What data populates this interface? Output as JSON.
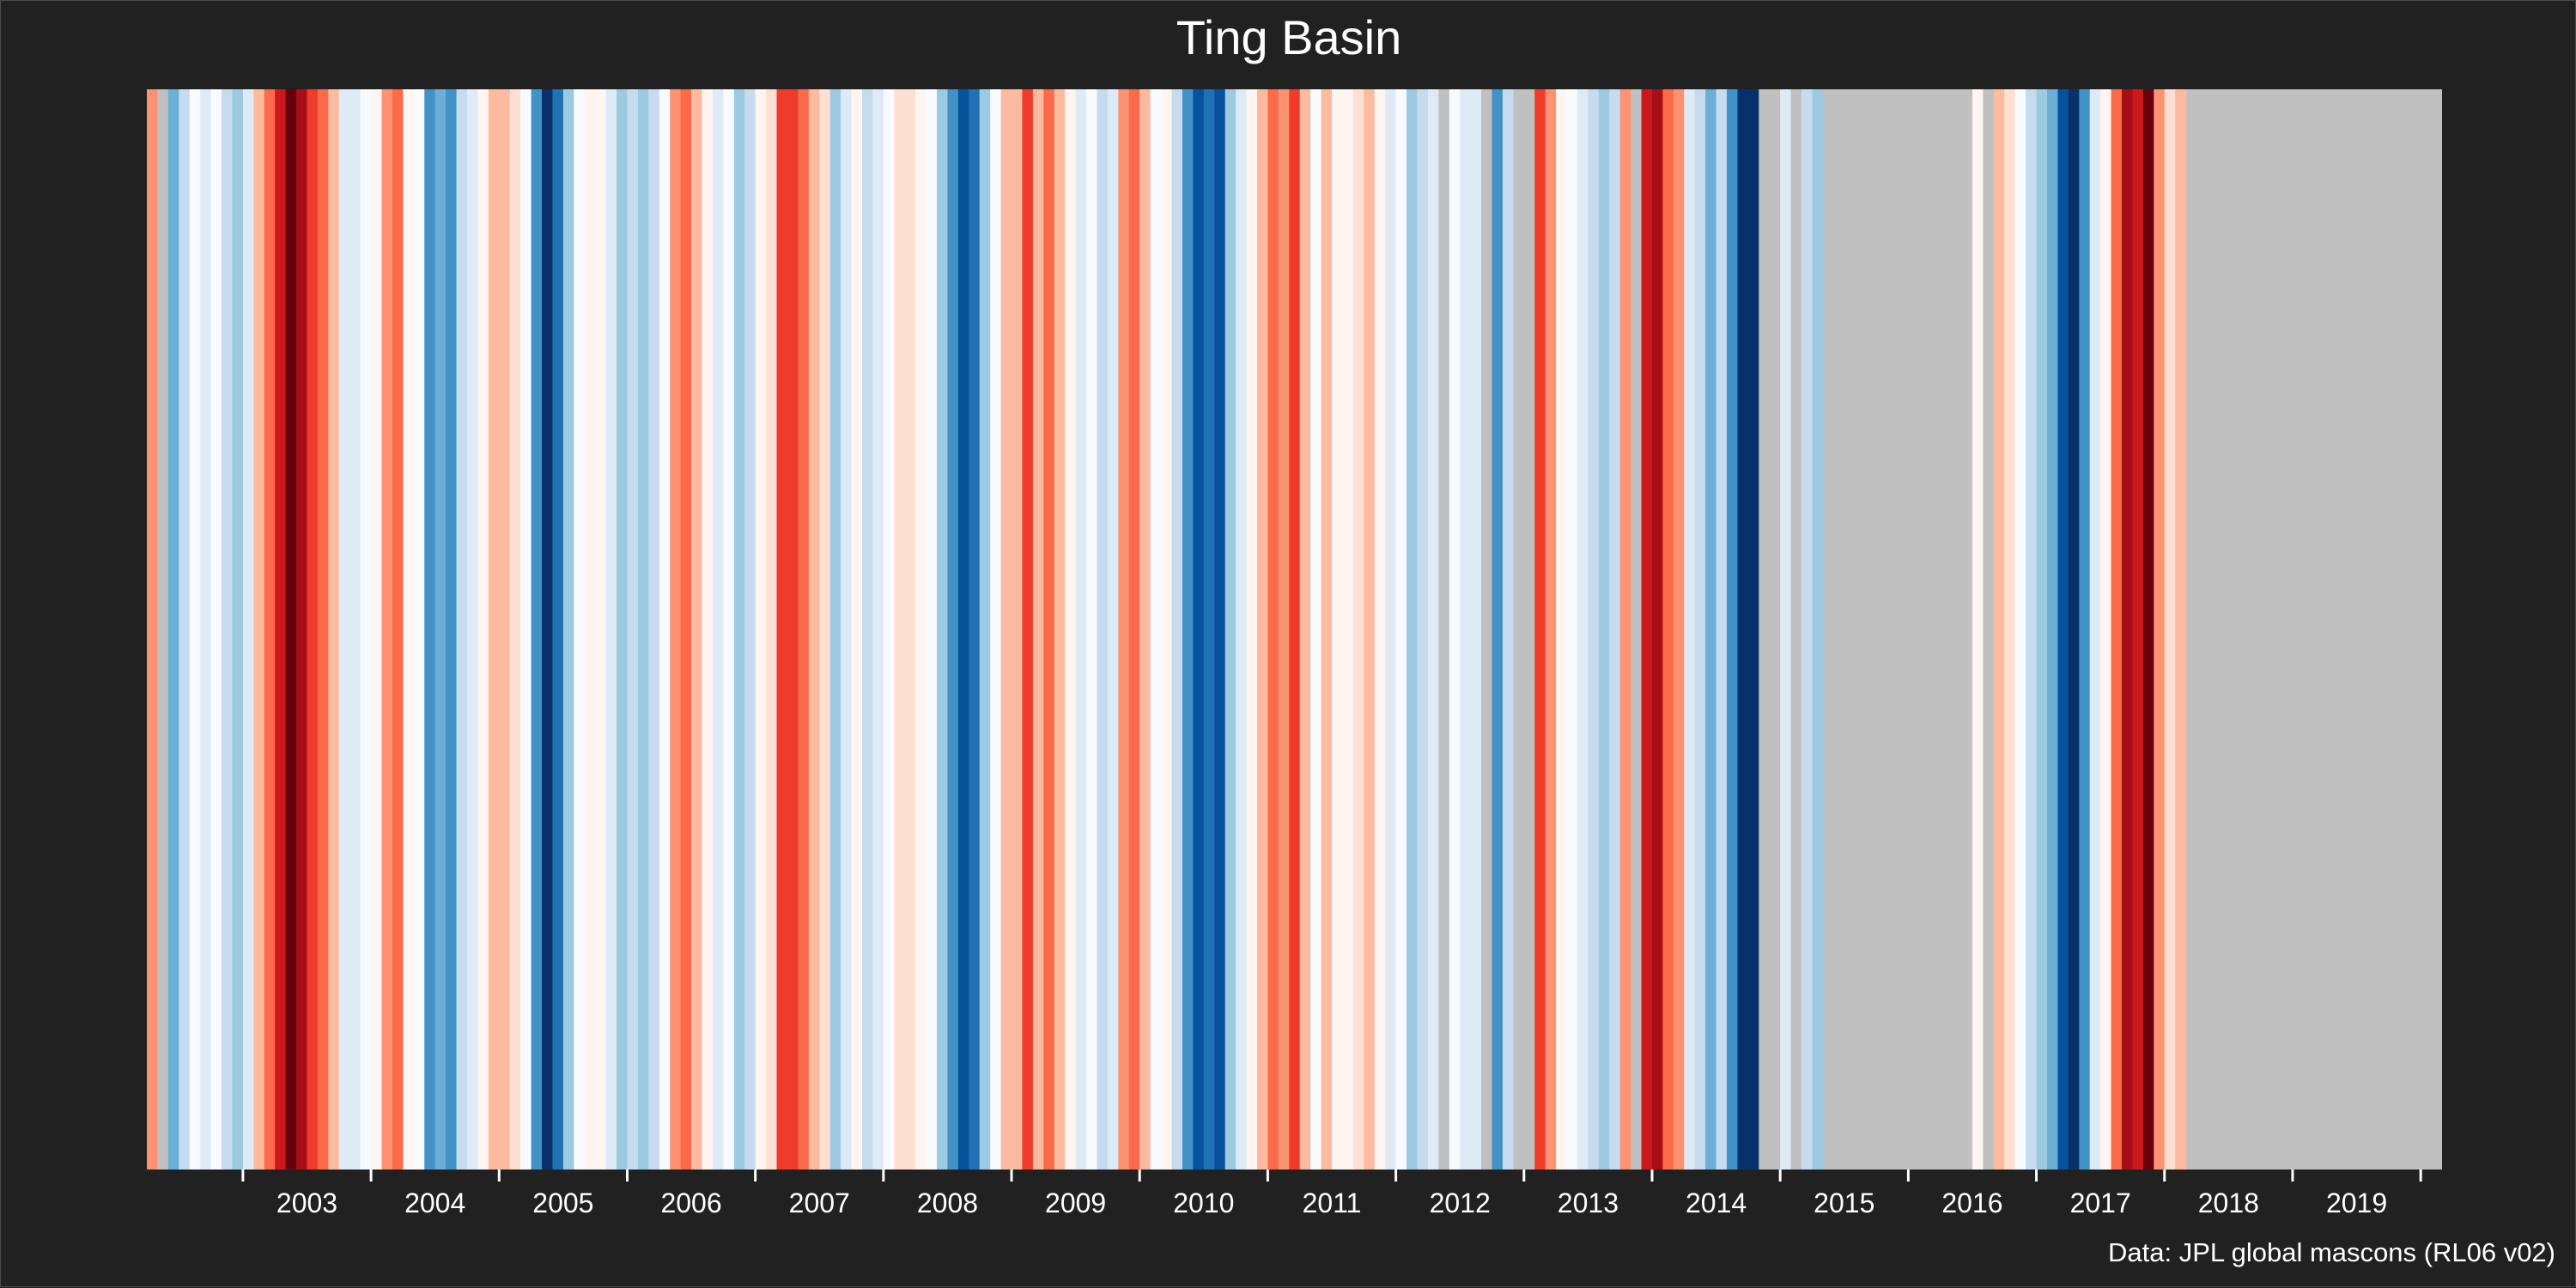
{
  "colors": {
    "background": "#212121",
    "text": "#ffffff",
    "missing": "#c0c0c0",
    "palette": [
      "#08306b",
      "#08519c",
      "#2171b5",
      "#4292c6",
      "#6baed6",
      "#9ecae1",
      "#c6dbef",
      "#deebf7",
      "#f7fbff",
      "#fff5f0",
      "#fee0d2",
      "#fcbba1",
      "#fc9272",
      "#fb6a4a",
      "#ef3b2c",
      "#cb181d",
      "#a50f15",
      "#67000d"
    ]
  },
  "chart_data": {
    "type": "heatmap",
    "title": "Ting Basin",
    "subtitle": "",
    "caption": "Data: JPL global mascons (RL06 v02)",
    "xlabel": "",
    "ylabel": "",
    "x_axis_type": "date",
    "xlim": [
      "2002-04",
      "2020-03"
    ],
    "x_ticks": [
      "2003",
      "2004",
      "2005",
      "2006",
      "2007",
      "2008",
      "2009",
      "2010",
      "2011",
      "2012",
      "2013",
      "2014",
      "2015",
      "2016",
      "2017",
      "2018",
      "2019"
    ],
    "grid": false,
    "legend": "none",
    "value_scale": "diverging anomaly, blue = low to red = high, grey = no data",
    "stripes": [
      {
        "from": "2002-04",
        "to": "2002-05",
        "level": 0.4
      },
      {
        "from": "2002-05",
        "to": "2002-06",
        "level": null
      },
      {
        "from": "2002-06",
        "to": "2002-07",
        "level": -0.55
      },
      {
        "from": "2002-07",
        "to": "2002-08",
        "level": -0.3
      },
      {
        "from": "2002-08",
        "to": "2002-09",
        "level": -0.1
      },
      {
        "from": "2002-09",
        "to": "2002-10",
        "level": -0.2
      },
      {
        "from": "2002-10",
        "to": "2002-11",
        "level": -0.1
      },
      {
        "from": "2002-11",
        "to": "2002-12",
        "level": -0.25
      },
      {
        "from": "2002-12",
        "to": "2003-01",
        "level": -0.4
      },
      {
        "from": "2003-01",
        "to": "2003-02",
        "level": -0.15
      },
      {
        "from": "2003-02",
        "to": "2003-03",
        "level": 0.25
      },
      {
        "from": "2003-03",
        "to": "2003-04",
        "level": 0.55
      },
      {
        "from": "2003-04",
        "to": "2003-05",
        "level": 0.75
      },
      {
        "from": "2003-05",
        "to": "2003-06",
        "level": 0.95
      },
      {
        "from": "2003-06",
        "to": "2003-07",
        "level": 0.85
      },
      {
        "from": "2003-07",
        "to": "2003-08",
        "level": 0.7
      },
      {
        "from": "2003-08",
        "to": "2003-09",
        "level": 0.5
      },
      {
        "from": "2003-09",
        "to": "2003-10",
        "level": 0.25
      },
      {
        "from": "2003-10",
        "to": "2003-11",
        "level": -0.15
      },
      {
        "from": "2003-11",
        "to": "2003-12",
        "level": -0.2
      },
      {
        "from": "2003-12",
        "to": "2004-01",
        "level": -0.1
      },
      {
        "from": "2004-01",
        "to": "2004-02",
        "level": 0.1
      },
      {
        "from": "2004-02",
        "to": "2004-03",
        "level": 0.45
      },
      {
        "from": "2004-03",
        "to": "2004-04",
        "level": 0.5
      },
      {
        "from": "2004-04",
        "to": "2004-05",
        "level": 0.05
      },
      {
        "from": "2004-05",
        "to": "2004-06",
        "level": -0.05
      },
      {
        "from": "2004-06",
        "to": "2004-07",
        "level": -0.6
      },
      {
        "from": "2004-07",
        "to": "2004-08",
        "level": -0.5
      },
      {
        "from": "2004-08",
        "to": "2004-09",
        "level": -0.65
      },
      {
        "from": "2004-09",
        "to": "2004-10",
        "level": -0.3
      },
      {
        "from": "2004-10",
        "to": "2004-11",
        "level": -0.2
      },
      {
        "from": "2004-11",
        "to": "2004-12",
        "level": 0.05
      },
      {
        "from": "2004-12",
        "to": "2005-01",
        "level": 0.25
      },
      {
        "from": "2005-01",
        "to": "2005-02",
        "level": 0.35
      },
      {
        "from": "2005-02",
        "to": "2005-03",
        "level": 0.2
      },
      {
        "from": "2005-03",
        "to": "2005-04",
        "level": -0.1
      },
      {
        "from": "2005-04",
        "to": "2005-05",
        "level": -0.7
      },
      {
        "from": "2005-05",
        "to": "2005-06",
        "level": -1.0
      },
      {
        "from": "2005-06",
        "to": "2005-07",
        "level": -0.75
      },
      {
        "from": "2005-07",
        "to": "2005-08",
        "level": -0.4
      },
      {
        "from": "2005-08",
        "to": "2005-09",
        "level": -0.1
      },
      {
        "from": "2005-09",
        "to": "2005-10",
        "level": 0.05
      },
      {
        "from": "2005-10",
        "to": "2005-11",
        "level": 0.1
      },
      {
        "from": "2005-11",
        "to": "2005-12",
        "level": -0.2
      },
      {
        "from": "2005-12",
        "to": "2006-01",
        "level": -0.4
      },
      {
        "from": "2006-01",
        "to": "2006-02",
        "level": -0.3
      },
      {
        "from": "2006-02",
        "to": "2006-03",
        "level": -0.4
      },
      {
        "from": "2006-03",
        "to": "2006-04",
        "level": -0.35
      },
      {
        "from": "2006-04",
        "to": "2006-05",
        "level": -0.05
      },
      {
        "from": "2006-05",
        "to": "2006-06",
        "level": 0.4
      },
      {
        "from": "2006-06",
        "to": "2006-07",
        "level": 0.5
      },
      {
        "from": "2006-07",
        "to": "2006-08",
        "level": 0.3
      },
      {
        "from": "2006-08",
        "to": "2006-09",
        "level": 0.05
      },
      {
        "from": "2006-09",
        "to": "2006-10",
        "level": -0.2
      },
      {
        "from": "2006-10",
        "to": "2006-11",
        "level": -0.05
      },
      {
        "from": "2006-11",
        "to": "2006-12",
        "level": -0.45
      },
      {
        "from": "2006-12",
        "to": "2007-01",
        "level": -0.25
      },
      {
        "from": "2007-01",
        "to": "2007-02",
        "level": 0.05
      },
      {
        "from": "2007-02",
        "to": "2007-03",
        "level": 0.2
      },
      {
        "from": "2007-03",
        "to": "2007-04",
        "level": 0.65
      },
      {
        "from": "2007-04",
        "to": "2007-05",
        "level": 0.7
      },
      {
        "from": "2007-05",
        "to": "2007-06",
        "level": 0.55
      },
      {
        "from": "2007-06",
        "to": "2007-07",
        "level": 0.35
      },
      {
        "from": "2007-07",
        "to": "2007-08",
        "level": 0.2
      },
      {
        "from": "2007-08",
        "to": "2007-09",
        "level": -0.45
      },
      {
        "from": "2007-09",
        "to": "2007-10",
        "level": -0.2
      },
      {
        "from": "2007-10",
        "to": "2007-11",
        "level": 0.05
      },
      {
        "from": "2007-11",
        "to": "2007-12",
        "level": -0.3
      },
      {
        "from": "2007-12",
        "to": "2008-01",
        "level": -0.15
      },
      {
        "from": "2008-01",
        "to": "2008-02",
        "level": -0.05
      },
      {
        "from": "2008-02",
        "to": "2008-03",
        "level": 0.15
      },
      {
        "from": "2008-03",
        "to": "2008-04",
        "level": 0.15
      },
      {
        "from": "2008-04",
        "to": "2008-05",
        "level": 0.05
      },
      {
        "from": "2008-05",
        "to": "2008-06",
        "level": -0.1
      },
      {
        "from": "2008-06",
        "to": "2008-07",
        "level": -0.4
      },
      {
        "from": "2008-07",
        "to": "2008-08",
        "level": -0.6
      },
      {
        "from": "2008-08",
        "to": "2008-09",
        "level": -0.85
      },
      {
        "from": "2008-09",
        "to": "2008-10",
        "level": -0.8
      },
      {
        "from": "2008-10",
        "to": "2008-11",
        "level": -0.45
      },
      {
        "from": "2008-11",
        "to": "2008-12",
        "level": -0.1
      },
      {
        "from": "2008-12",
        "to": "2009-01",
        "level": 0.3
      },
      {
        "from": "2009-01",
        "to": "2009-02",
        "level": 0.35
      },
      {
        "from": "2009-02",
        "to": "2009-03",
        "level": 0.65
      },
      {
        "from": "2009-03",
        "to": "2009-04",
        "level": 0.35
      },
      {
        "from": "2009-04",
        "to": "2009-05",
        "level": 0.5
      },
      {
        "from": "2009-05",
        "to": "2009-06",
        "level": 0.3
      },
      {
        "from": "2009-06",
        "to": "2009-07",
        "level": 0.05
      },
      {
        "from": "2009-07",
        "to": "2009-08",
        "level": -0.2
      },
      {
        "from": "2009-08",
        "to": "2009-09",
        "level": -0.1
      },
      {
        "from": "2009-09",
        "to": "2009-10",
        "level": -0.25
      },
      {
        "from": "2009-10",
        "to": "2009-11",
        "level": -0.15
      },
      {
        "from": "2009-11",
        "to": "2009-12",
        "level": 0.4
      },
      {
        "from": "2009-12",
        "to": "2010-01",
        "level": 0.5
      },
      {
        "from": "2010-01",
        "to": "2010-02",
        "level": 0.25
      },
      {
        "from": "2010-02",
        "to": "2010-03",
        "level": -0.05
      },
      {
        "from": "2010-03",
        "to": "2010-04",
        "level": 0.05
      },
      {
        "from": "2010-04",
        "to": "2010-05",
        "level": -0.35
      },
      {
        "from": "2010-05",
        "to": "2010-06",
        "level": -0.6
      },
      {
        "from": "2010-06",
        "to": "2010-07",
        "level": -0.85
      },
      {
        "from": "2010-07",
        "to": "2010-08",
        "level": -0.75
      },
      {
        "from": "2010-08",
        "to": "2010-09",
        "level": -0.85
      },
      {
        "from": "2010-09",
        "to": "2010-10",
        "level": -0.45
      },
      {
        "from": "2010-10",
        "to": "2010-11",
        "level": -0.2
      },
      {
        "from": "2010-11",
        "to": "2010-12",
        "level": 0.05
      },
      {
        "from": "2010-12",
        "to": "2011-01",
        "level": 0.25
      },
      {
        "from": "2011-01",
        "to": "2011-02",
        "level": 0.55
      },
      {
        "from": "2011-02",
        "to": "2011-03",
        "level": 0.4
      },
      {
        "from": "2011-03",
        "to": "2011-04",
        "level": 0.65
      },
      {
        "from": "2011-04",
        "to": "2011-05",
        "level": 0.3
      },
      {
        "from": "2011-05",
        "to": "2011-06",
        "level": -0.05
      },
      {
        "from": "2011-06",
        "to": "2011-07",
        "level": 0.25
      },
      {
        "from": "2011-07",
        "to": "2011-08",
        "level": 0.1
      },
      {
        "from": "2011-08",
        "to": "2011-09",
        "level": 0.05
      },
      {
        "from": "2011-09",
        "to": "2011-10",
        "level": 0.2
      },
      {
        "from": "2011-10",
        "to": "2011-11",
        "level": 0.35
      },
      {
        "from": "2011-11",
        "to": "2011-12",
        "level": 0.05
      },
      {
        "from": "2011-12",
        "to": "2012-01",
        "level": -0.2
      },
      {
        "from": "2012-01",
        "to": "2012-02",
        "level": -0.1
      },
      {
        "from": "2012-02",
        "to": "2012-03",
        "level": -0.45
      },
      {
        "from": "2012-03",
        "to": "2012-04",
        "level": -0.35
      },
      {
        "from": "2012-04",
        "to": "2012-05",
        "level": -0.2
      },
      {
        "from": "2012-05",
        "to": "2012-06",
        "level": null
      },
      {
        "from": "2012-06",
        "to": "2012-07",
        "level": -0.05
      },
      {
        "from": "2012-07",
        "to": "2012-08",
        "level": -0.2
      },
      {
        "from": "2012-08",
        "to": "2012-09",
        "level": -0.15
      },
      {
        "from": "2012-09",
        "to": "2012-10",
        "level": null
      },
      {
        "from": "2012-10",
        "to": "2012-11",
        "level": -0.6
      },
      {
        "from": "2012-11",
        "to": "2012-12",
        "level": -0.3
      },
      {
        "from": "2012-12",
        "to": "2013-01",
        "level": null
      },
      {
        "from": "2013-01",
        "to": "2013-02",
        "level": null
      },
      {
        "from": "2013-02",
        "to": "2013-03",
        "level": 0.6
      },
      {
        "from": "2013-03",
        "to": "2013-04",
        "level": 0.4
      },
      {
        "from": "2013-04",
        "to": "2013-05",
        "level": 0.1
      },
      {
        "from": "2013-05",
        "to": "2013-06",
        "level": -0.05
      },
      {
        "from": "2013-06",
        "to": "2013-07",
        "level": -0.2
      },
      {
        "from": "2013-07",
        "to": "2013-08",
        "level": -0.3
      },
      {
        "from": "2013-08",
        "to": "2013-09",
        "level": -0.4
      },
      {
        "from": "2013-09",
        "to": "2013-10",
        "level": -0.25
      },
      {
        "from": "2013-10",
        "to": "2013-11",
        "level": 0.45
      },
      {
        "from": "2013-11",
        "to": "2013-12",
        "level": null
      },
      {
        "from": "2013-12",
        "to": "2014-01",
        "level": 0.75
      },
      {
        "from": "2014-01",
        "to": "2014-02",
        "level": 0.85
      },
      {
        "from": "2014-02",
        "to": "2014-03",
        "level": 0.55
      },
      {
        "from": "2014-03",
        "to": "2014-04",
        "level": 0.4
      },
      {
        "from": "2014-04",
        "to": "2014-05",
        "level": -0.15
      },
      {
        "from": "2014-05",
        "to": "2014-06",
        "level": -0.25
      },
      {
        "from": "2014-06",
        "to": "2014-07",
        "level": -0.5
      },
      {
        "from": "2014-07",
        "to": "2014-08",
        "level": -0.35
      },
      {
        "from": "2014-08",
        "to": "2014-09",
        "level": -0.65
      },
      {
        "from": "2014-09",
        "to": "2014-10",
        "level": -1.0
      },
      {
        "from": "2014-10",
        "to": "2014-11",
        "level": -0.95
      },
      {
        "from": "2014-11",
        "to": "2014-12",
        "level": null
      },
      {
        "from": "2014-12",
        "to": "2015-01",
        "level": null
      },
      {
        "from": "2015-01",
        "to": "2015-02",
        "level": -0.2
      },
      {
        "from": "2015-02",
        "to": "2015-03",
        "level": null
      },
      {
        "from": "2015-03",
        "to": "2015-04",
        "level": -0.3
      },
      {
        "from": "2015-04",
        "to": "2015-05",
        "level": -0.45
      },
      {
        "from": "2016-06",
        "to": "2016-07",
        "level": null
      },
      {
        "from": "2016-07",
        "to": "2016-08",
        "level": 0.05
      },
      {
        "from": "2016-08",
        "to": "2016-09",
        "level": null
      },
      {
        "from": "2016-09",
        "to": "2016-10",
        "level": 0.35
      },
      {
        "from": "2016-10",
        "to": "2016-11",
        "level": 0.15
      },
      {
        "from": "2016-11",
        "to": "2016-12",
        "level": -0.05
      },
      {
        "from": "2016-12",
        "to": "2017-01",
        "level": -0.3
      },
      {
        "from": "2017-01",
        "to": "2017-02",
        "level": -0.45
      },
      {
        "from": "2017-02",
        "to": "2017-03",
        "level": -0.55
      },
      {
        "from": "2017-03",
        "to": "2017-04",
        "level": -0.85
      },
      {
        "from": "2017-04",
        "to": "2017-05",
        "level": -0.95
      },
      {
        "from": "2017-05",
        "to": "2017-06",
        "level": -0.6
      },
      {
        "from": "2017-06",
        "to": "2017-07",
        "level": -0.2
      },
      {
        "from": "2017-07",
        "to": "2017-08",
        "level": 0.05
      },
      {
        "from": "2017-08",
        "to": "2017-09",
        "level": 0.55
      },
      {
        "from": "2017-09",
        "to": "2017-10",
        "level": 0.85
      },
      {
        "from": "2017-10",
        "to": "2017-11",
        "level": 0.75
      },
      {
        "from": "2017-11",
        "to": "2017-12",
        "level": 0.95
      },
      {
        "from": "2017-12",
        "to": "2018-01",
        "level": 0.45
      },
      {
        "from": "2018-01",
        "to": "2018-02",
        "level": 0.15
      },
      {
        "from": "2018-02",
        "to": "2018-03",
        "level": 0.3
      }
    ]
  }
}
